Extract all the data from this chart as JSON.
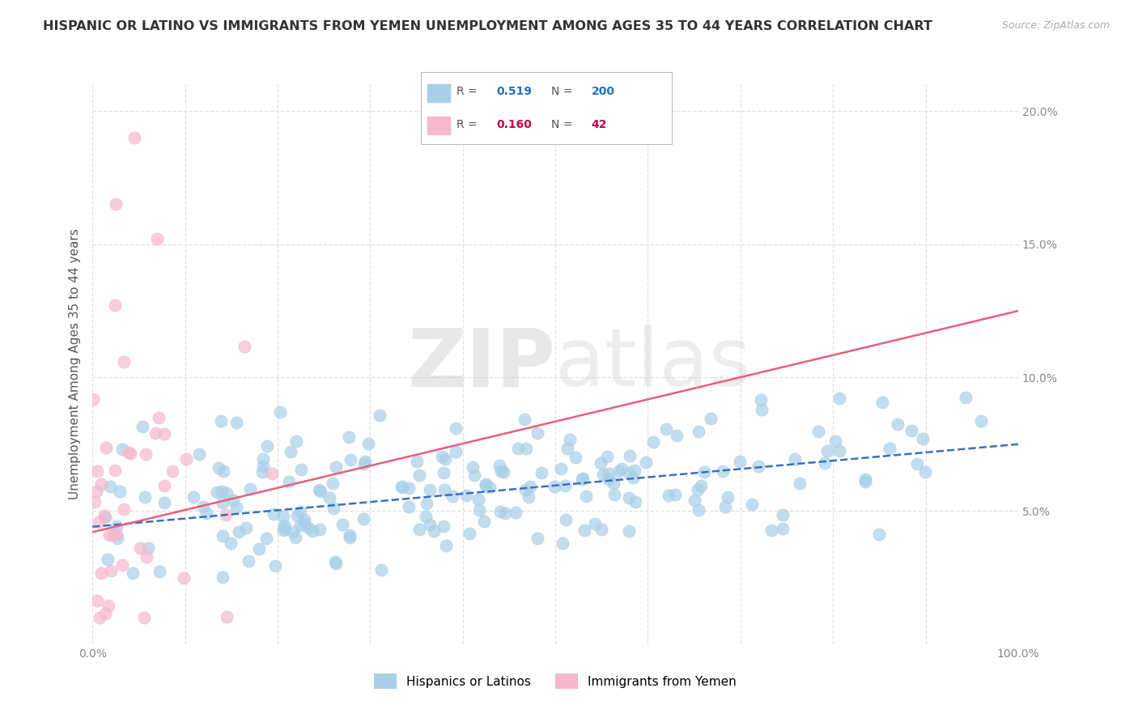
{
  "title": "HISPANIC OR LATINO VS IMMIGRANTS FROM YEMEN UNEMPLOYMENT AMONG AGES 35 TO 44 YEARS CORRELATION CHART",
  "source": "Source: ZipAtlas.com",
  "ylabel": "Unemployment Among Ages 35 to 44 years",
  "legend_labels": [
    "Hispanics or Latinos",
    "Immigrants from Yemen"
  ],
  "blue_color": "#a8cfe8",
  "pink_color": "#f5b8cc",
  "blue_line_color": "#3a6fbf",
  "pink_line_color": "#e8607a",
  "r_blue": 0.519,
  "n_blue": 200,
  "r_pink": 0.16,
  "n_pink": 42,
  "watermark_zip": "ZIP",
  "watermark_atlas": "atlas",
  "xlim": [
    0,
    100
  ],
  "ylim": [
    0,
    21
  ],
  "blue_trend_x0": 0,
  "blue_trend_y0": 4.4,
  "blue_trend_x1": 100,
  "blue_trend_y1": 7.5,
  "pink_trend_x0": 0,
  "pink_trend_y0": 4.2,
  "pink_trend_x1": 100,
  "pink_trend_y1": 12.5,
  "bg_color": "#ffffff",
  "grid_color": "#e0e0e0",
  "title_color": "#333333",
  "tick_color": "#888888",
  "value_color_blue": "#2471b8",
  "value_color_pink": "#c0004e",
  "seed": 42
}
